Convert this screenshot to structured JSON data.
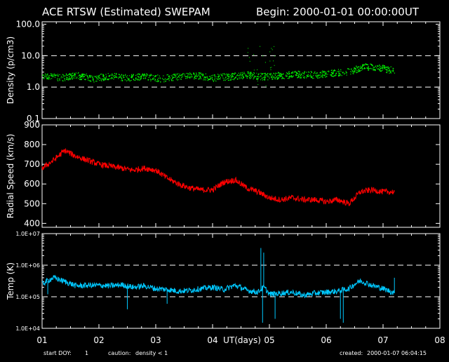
{
  "header": {
    "title": "ACE RTSW (Estimated) SWEPAM",
    "begin": "Begin: 2000-01-01 00:00:00UT"
  },
  "footer": {
    "start_doy_label": "start DOY:",
    "start_doy_value": "1",
    "caution_label": "caution:",
    "caution_value": "density < 1",
    "created_label": "created:",
    "created_value": "2000-01-07 06:04:15",
    "caution_color": "#ffff00"
  },
  "chart_data": [
    {
      "type": "scatter",
      "name": "density",
      "ylabel": "Density (p/cm3)",
      "color": "#00ff00",
      "scale": "log",
      "ylim": [
        0.1,
        120
      ],
      "yticks": [
        "100.0",
        "10.0",
        "1.0",
        "0.1"
      ],
      "ytick_values": [
        100,
        10,
        1,
        0.1
      ],
      "dashed_lines": [
        10,
        1
      ],
      "x": [
        1.0,
        1.3,
        1.6,
        1.9,
        2.2,
        2.5,
        2.8,
        3.1,
        3.4,
        3.7,
        4.0,
        4.3,
        4.6,
        4.9,
        5.2,
        5.5,
        5.8,
        6.1,
        6.4,
        6.7,
        7.0,
        7.2
      ],
      "values": [
        2.5,
        2.0,
        2.4,
        1.9,
        2.3,
        2.0,
        2.2,
        1.9,
        2.2,
        2.4,
        2.0,
        2.2,
        2.5,
        2.2,
        2.4,
        2.6,
        2.5,
        2.8,
        3.2,
        4.6,
        4.0,
        3.4
      ]
    },
    {
      "type": "line",
      "name": "radial_speed",
      "ylabel": "Radial Speed (km/s)",
      "color": "#ff0000",
      "scale": "linear",
      "ylim": [
        380,
        900
      ],
      "yticks": [
        "900",
        "800",
        "700",
        "600",
        "500",
        "400"
      ],
      "ytick_values": [
        900,
        800,
        700,
        600,
        500,
        400
      ],
      "x": [
        1.0,
        1.2,
        1.4,
        1.6,
        1.8,
        2.0,
        2.2,
        2.4,
        2.6,
        2.8,
        3.0,
        3.2,
        3.4,
        3.6,
        3.8,
        4.0,
        4.2,
        4.4,
        4.6,
        4.8,
        5.0,
        5.2,
        5.4,
        5.6,
        5.8,
        6.0,
        6.2,
        6.4,
        6.6,
        6.8,
        7.0,
        7.2
      ],
      "values": [
        680,
        720,
        770,
        740,
        720,
        700,
        690,
        680,
        670,
        680,
        670,
        630,
        600,
        580,
        570,
        570,
        610,
        620,
        580,
        560,
        530,
        520,
        530,
        520,
        520,
        510,
        520,
        500,
        560,
        570,
        560,
        560
      ]
    },
    {
      "type": "line",
      "name": "temperature",
      "ylabel": "Temp (K)",
      "color": "#00c8ff",
      "scale": "log",
      "ylim": [
        10000,
        10000000
      ],
      "yticks": [
        "1.0E+07",
        "1.0E+06",
        "1.0E+05",
        "1.0E+04"
      ],
      "ytick_values": [
        10000000,
        1000000,
        100000,
        10000
      ],
      "dashed_lines": [
        1000000,
        100000
      ],
      "x": [
        1.0,
        1.2,
        1.4,
        1.6,
        1.8,
        2.0,
        2.2,
        2.4,
        2.6,
        2.8,
        3.0,
        3.2,
        3.4,
        3.6,
        3.8,
        4.0,
        4.2,
        4.4,
        4.6,
        4.8,
        4.9,
        5.0,
        5.2,
        5.4,
        5.6,
        5.8,
        6.0,
        6.2,
        6.4,
        6.6,
        6.8,
        7.0,
        7.2
      ],
      "values": [
        250000,
        400000,
        300000,
        220000,
        230000,
        230000,
        220000,
        240000,
        200000,
        220000,
        180000,
        170000,
        150000,
        160000,
        180000,
        200000,
        170000,
        230000,
        160000,
        140000,
        200000,
        120000,
        130000,
        140000,
        110000,
        130000,
        140000,
        150000,
        180000,
        320000,
        230000,
        180000,
        130000
      ]
    }
  ],
  "x_axis": {
    "label": "UT(days)",
    "ticks": [
      "01",
      "02",
      "03",
      "04",
      "05",
      "06",
      "07",
      "08"
    ],
    "xlim": [
      1,
      8
    ]
  }
}
